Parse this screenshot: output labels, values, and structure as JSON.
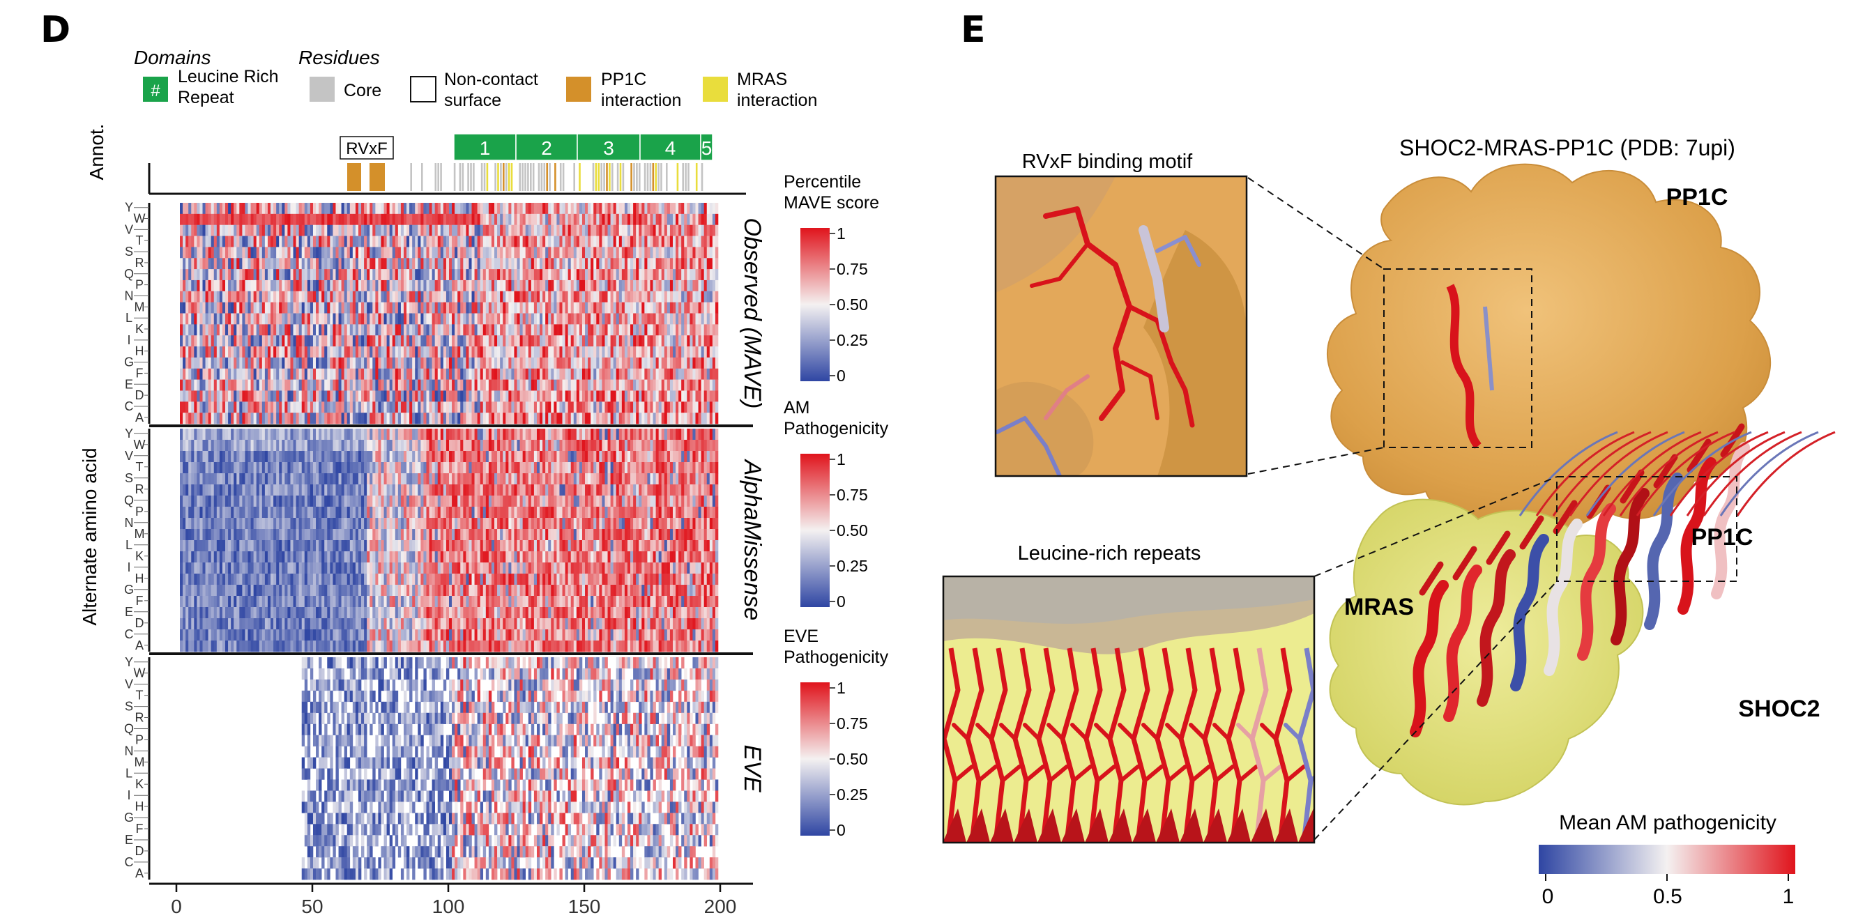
{
  "panel_d": {
    "letter": "D",
    "legend": {
      "domains_title": "Domains",
      "residues_title": "Residues",
      "items": [
        {
          "symbol": "#",
          "label_lines": [
            "Leucine Rich",
            "Repeat"
          ],
          "color": "#1aa34a"
        },
        {
          "label_lines": [
            "Core"
          ],
          "color": "#c4c4c4"
        },
        {
          "label_lines": [
            "Non-contact",
            "surface"
          ],
          "color": "#ffffff"
        },
        {
          "label_lines": [
            "PP1C",
            "interaction"
          ],
          "color": "#d4902a"
        },
        {
          "label_lines": [
            "MRAS",
            "interaction"
          ],
          "color": "#e9dd3c"
        }
      ]
    },
    "annot_label": "Annot.",
    "rvxf_label": "RVxF",
    "lrr_labels": [
      "1",
      "2",
      "3",
      "4",
      "5"
    ],
    "y_axis_title": "Alternate amino acid",
    "x_ticks": [
      "0",
      "50",
      "100",
      "150",
      "200"
    ],
    "left_tick_letters": [
      "Y",
      "V",
      "S",
      "Q",
      "N",
      "L",
      "I",
      "G",
      "E",
      "C"
    ],
    "right_tick_letters": [
      "W",
      "T",
      "R",
      "P",
      "M",
      "K",
      "H",
      "F",
      "D",
      "A"
    ],
    "tracks": [
      {
        "title": "Observed (MAVE)",
        "colorbar_title": [
          "Percentile",
          "MAVE score"
        ]
      },
      {
        "title": "AlphaMissense",
        "colorbar_title": [
          "AM",
          "Pathogenicity"
        ]
      },
      {
        "title": "EVE",
        "colorbar_title": [
          "EVE",
          "Pathogenicity"
        ]
      }
    ],
    "colorbar_ticks": [
      "1",
      "0.75",
      "0.50",
      "0.25",
      "0"
    ]
  },
  "panel_e": {
    "letter": "E",
    "title": "SHOC2-MRAS-PP1C (PDB: 7upi)",
    "inset1_title": "RVxF binding motif",
    "inset2_title": "Leucine-rich repeats",
    "labels": {
      "pp1c": "PP1C",
      "mras": "MRAS",
      "shoc2": "SHOC2"
    },
    "colorbar_title": "Mean AM pathogenicity",
    "colorbar_ticks": [
      "0",
      "0.5",
      "1"
    ]
  },
  "colors": {
    "blue": "#3b4fa6",
    "white": "#f6f3f3",
    "red": "#e2242b",
    "lrr_green": "#1aa34a",
    "pp1c_orange": "#e2a64a",
    "mras_yellow": "#e3e27a"
  }
}
